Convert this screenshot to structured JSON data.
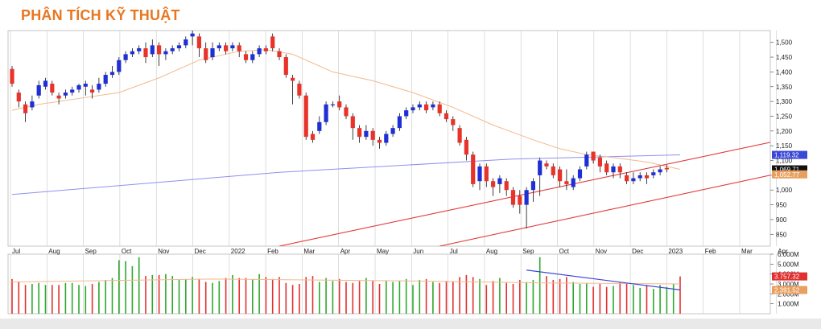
{
  "title": "PHÂN TÍCH KỸ THUẬT",
  "colors": {
    "up": "#1f2fd6",
    "down": "#e8332a",
    "ma": "#f3b98e",
    "longma": "#8f8ff0",
    "trend": "#e23b3b",
    "grid": "#c8c8c8",
    "vol_up": "#2ea82e",
    "vol_down": "#e23030",
    "vol_trend": "#3b47d6"
  },
  "chart_data": [
    {
      "type": "candlestick",
      "xlabels": [
        "Jul",
        "Aug",
        "Sep",
        "Oct",
        "Nov",
        "Dec",
        "2022",
        "Feb",
        "Mar",
        "Apr",
        "May",
        "Jun",
        "Jul",
        "Aug",
        "Sep",
        "Oct",
        "Nov",
        "Dec",
        "2023",
        "Feb",
        "Mar",
        "Apr"
      ],
      "ylim": [
        810,
        1540
      ],
      "yticks": [
        850,
        900,
        950,
        1000,
        1050,
        1100,
        1150,
        1200,
        1250,
        1300,
        1350,
        1400,
        1450,
        1500
      ],
      "ytick_labels": [
        "850",
        "900",
        "950",
        "1,000",
        "1,050",
        "1,100",
        "1,150",
        "1,200",
        "1,250",
        "1,300",
        "1,350",
        "1,400",
        "1,450",
        "1,500"
      ],
      "price_tags": [
        {
          "label": "1,119.32",
          "value": 1119,
          "color": "#3b47d6"
        },
        {
          "label": "1,069.71",
          "value": 1070,
          "color": "#111111"
        },
        {
          "label": "1,052.77",
          "value": 1053,
          "color": "#e8a060"
        }
      ],
      "candles": [
        [
          1410,
          1360,
          1420,
          1350
        ],
        [
          1330,
          1300,
          1340,
          1280
        ],
        [
          1290,
          1260,
          1300,
          1230
        ],
        [
          1280,
          1300,
          1320,
          1270
        ],
        [
          1320,
          1355,
          1370,
          1310
        ],
        [
          1350,
          1370,
          1380,
          1340
        ],
        [
          1360,
          1330,
          1370,
          1320
        ],
        [
          1320,
          1310,
          1330,
          1290
        ],
        [
          1320,
          1330,
          1340,
          1310
        ],
        [
          1330,
          1340,
          1350,
          1320
        ],
        [
          1340,
          1355,
          1360,
          1330
        ],
        [
          1350,
          1360,
          1370,
          1320
        ],
        [
          1340,
          1330,
          1355,
          1310
        ],
        [
          1340,
          1360,
          1380,
          1330
        ],
        [
          1360,
          1390,
          1400,
          1350
        ],
        [
          1390,
          1400,
          1420,
          1380
        ],
        [
          1400,
          1440,
          1450,
          1390
        ],
        [
          1440,
          1460,
          1470,
          1430
        ],
        [
          1460,
          1470,
          1480,
          1450
        ],
        [
          1470,
          1480,
          1490,
          1460
        ],
        [
          1480,
          1450,
          1500,
          1430
        ],
        [
          1460,
          1490,
          1510,
          1450
        ],
        [
          1490,
          1460,
          1500,
          1420
        ],
        [
          1460,
          1470,
          1480,
          1440
        ],
        [
          1470,
          1480,
          1490,
          1460
        ],
        [
          1480,
          1490,
          1500,
          1470
        ],
        [
          1490,
          1510,
          1520,
          1480
        ],
        [
          1520,
          1530,
          1540,
          1490
        ],
        [
          1520,
          1480,
          1530,
          1450
        ],
        [
          1480,
          1440,
          1500,
          1430
        ],
        [
          1450,
          1480,
          1500,
          1440
        ],
        [
          1480,
          1490,
          1500,
          1470
        ],
        [
          1490,
          1470,
          1500,
          1460
        ],
        [
          1480,
          1490,
          1500,
          1470
        ],
        [
          1490,
          1470,
          1500,
          1450
        ],
        [
          1460,
          1440,
          1470,
          1430
        ],
        [
          1440,
          1460,
          1470,
          1430
        ],
        [
          1460,
          1480,
          1490,
          1450
        ],
        [
          1480,
          1470,
          1490,
          1460
        ],
        [
          1520,
          1480,
          1530,
          1470
        ],
        [
          1470,
          1450,
          1480,
          1440
        ],
        [
          1450,
          1390,
          1460,
          1380
        ],
        [
          1380,
          1370,
          1390,
          1290
        ],
        [
          1360,
          1320,
          1370,
          1310
        ],
        [
          1320,
          1180,
          1330,
          1170
        ],
        [
          1190,
          1170,
          1200,
          1160
        ],
        [
          1200,
          1230,
          1250,
          1190
        ],
        [
          1230,
          1290,
          1300,
          1220
        ],
        [
          1290,
          1290,
          1300,
          1280
        ],
        [
          1300,
          1280,
          1320,
          1270
        ],
        [
          1280,
          1250,
          1290,
          1240
        ],
        [
          1250,
          1210,
          1260,
          1170
        ],
        [
          1210,
          1180,
          1220,
          1160
        ],
        [
          1180,
          1200,
          1220,
          1170
        ],
        [
          1200,
          1170,
          1210,
          1150
        ],
        [
          1170,
          1160,
          1180,
          1140
        ],
        [
          1160,
          1190,
          1200,
          1150
        ],
        [
          1190,
          1210,
          1220,
          1180
        ],
        [
          1210,
          1250,
          1260,
          1200
        ],
        [
          1250,
          1270,
          1280,
          1240
        ],
        [
          1270,
          1280,
          1290,
          1260
        ],
        [
          1280,
          1290,
          1300,
          1270
        ],
        [
          1290,
          1270,
          1300,
          1260
        ],
        [
          1280,
          1290,
          1300,
          1270
        ],
        [
          1290,
          1260,
          1300,
          1250
        ],
        [
          1260,
          1240,
          1270,
          1230
        ],
        [
          1240,
          1220,
          1250,
          1200
        ],
        [
          1210,
          1160,
          1220,
          1150
        ],
        [
          1170,
          1120,
          1180,
          1100
        ],
        [
          1120,
          1020,
          1130,
          1010
        ],
        [
          1030,
          1080,
          1090,
          1000
        ],
        [
          1080,
          1030,
          1090,
          1010
        ],
        [
          1030,
          1010,
          1040,
          980
        ],
        [
          1020,
          1040,
          1050,
          990
        ],
        [
          1030,
          1000,
          1040,
          980
        ],
        [
          1000,
          950,
          1010,
          940
        ],
        [
          980,
          950,
          1000,
          920
        ],
        [
          950,
          1000,
          1010,
          870
        ],
        [
          1000,
          1030,
          1040,
          960
        ],
        [
          1050,
          1100,
          1110,
          980
        ],
        [
          1090,
          1080,
          1100,
          1070
        ],
        [
          1080,
          1050,
          1090,
          1040
        ],
        [
          1070,
          1030,
          1080,
          1010
        ],
        [
          1030,
          1020,
          1070,
          1000
        ],
        [
          1010,
          1040,
          1050,
          1000
        ],
        [
          1040,
          1070,
          1080,
          1030
        ],
        [
          1080,
          1120,
          1130,
          1070
        ],
        [
          1130,
          1100,
          1130,
          1090
        ],
        [
          1110,
          1080,
          1120,
          1060
        ],
        [
          1090,
          1060,
          1100,
          1050
        ],
        [
          1060,
          1080,
          1090,
          1040
        ],
        [
          1080,
          1060,
          1090,
          1040
        ],
        [
          1050,
          1030,
          1060,
          1020
        ],
        [
          1030,
          1040,
          1060,
          1020
        ],
        [
          1040,
          1050,
          1060,
          1030
        ],
        [
          1050,
          1040,
          1060,
          1020
        ],
        [
          1050,
          1060,
          1070,
          1040
        ],
        [
          1060,
          1070,
          1080,
          1050
        ],
        [
          1075,
          1070,
          1085,
          1060
        ]
      ],
      "moving_average": [
        [
          0,
          1270
        ],
        [
          4,
          1290
        ],
        [
          10,
          1310
        ],
        [
          16,
          1330
        ],
        [
          22,
          1380
        ],
        [
          28,
          1440
        ],
        [
          34,
          1470
        ],
        [
          38,
          1475
        ],
        [
          42,
          1460
        ],
        [
          48,
          1400
        ],
        [
          54,
          1370
        ],
        [
          60,
          1330
        ],
        [
          66,
          1280
        ],
        [
          72,
          1220
        ],
        [
          78,
          1170
        ],
        [
          82,
          1140
        ],
        [
          86,
          1120
        ],
        [
          90,
          1110
        ],
        [
          95,
          1095
        ],
        [
          100,
          1070
        ]
      ],
      "long_moving_average": [
        [
          0,
          985
        ],
        [
          40,
          1060
        ],
        [
          75,
          1105
        ],
        [
          100,
          1119
        ]
      ],
      "trend_lines": [
        {
          "from": [
            40,
            810
          ],
          "to": [
            132,
            1250
          ]
        },
        {
          "from": [
            64,
            810
          ],
          "to": [
            132,
            1140
          ]
        }
      ]
    },
    {
      "type": "bar",
      "title": "volume",
      "ylim": [
        0,
        6000000
      ],
      "yticks": [
        1000000,
        2000000,
        3000000,
        4000000,
        5000000,
        6000000
      ],
      "ytick_labels": [
        "1.000M",
        "2.000M",
        "3.000M",
        "4.000M",
        "5.000M",
        "6.000M"
      ],
      "value_tags": [
        {
          "label": "3.757.32",
          "value": 3760000,
          "color": "#e23030"
        },
        {
          "label": "2.391.52",
          "value": 2390000,
          "color": "#e8a060"
        }
      ],
      "values": [
        3500000,
        3200000,
        2900000,
        3000000,
        3100000,
        2900000,
        2900000,
        2900000,
        3100000,
        3100000,
        2900000,
        2800000,
        3000000,
        3200000,
        3400000,
        3600000,
        5400000,
        5300000,
        4800000,
        5700000,
        3800000,
        3900000,
        3900000,
        4000000,
        3800000,
        3400000,
        3500000,
        3700000,
        3500000,
        3200000,
        3100000,
        3300000,
        3600000,
        3900000,
        3600000,
        3600000,
        3500000,
        4000000,
        3700000,
        3500000,
        3700000,
        3100000,
        2900000,
        3000000,
        3700000,
        3800000,
        3200000,
        3600000,
        3300000,
        3500000,
        3200000,
        3100000,
        3300000,
        3600000,
        3300000,
        3000000,
        3300000,
        3200000,
        3300000,
        3500000,
        2900000,
        3400000,
        3500000,
        3200000,
        3100000,
        3300000,
        3200000,
        3700000,
        3900000,
        3700000,
        3500000,
        2900000,
        3300000,
        3600000,
        3100000,
        3000000,
        3400000,
        3200000,
        3400000,
        5700000,
        3800000,
        3400000,
        3500000,
        3700000,
        3200000,
        3000000,
        3100000,
        2700000,
        3000000,
        2700000,
        2800000,
        3200000,
        3000000,
        2900000,
        2600000,
        2900000,
        2500000,
        2900000,
        2700000,
        3000000,
        3760000
      ],
      "ups": [
        0,
        0,
        0,
        1,
        1,
        1,
        0,
        0,
        1,
        1,
        1,
        1,
        0,
        1,
        1,
        1,
        1,
        1,
        1,
        1,
        0,
        1,
        0,
        1,
        1,
        1,
        1,
        1,
        0,
        0,
        1,
        1,
        0,
        1,
        0,
        0,
        1,
        1,
        0,
        0,
        0,
        0,
        0,
        0,
        0,
        0,
        1,
        1,
        1,
        0,
        0,
        0,
        0,
        1,
        0,
        0,
        1,
        1,
        1,
        1,
        1,
        1,
        0,
        1,
        0,
        0,
        0,
        0,
        0,
        0,
        1,
        0,
        0,
        1,
        0,
        0,
        0,
        1,
        1,
        1,
        0,
        0,
        0,
        0,
        1,
        1,
        1,
        0,
        0,
        0,
        1,
        0,
        0,
        1,
        1,
        0,
        1,
        1,
        1,
        1,
        0
      ],
      "volume_ma": [
        [
          0,
          3200000
        ],
        [
          30,
          3500000
        ],
        [
          60,
          3300000
        ],
        [
          80,
          3100000
        ],
        [
          100,
          3000000
        ]
      ],
      "trend_line": {
        "from": [
          77,
          4400000
        ],
        "to": [
          100,
          2400000
        ]
      }
    }
  ]
}
